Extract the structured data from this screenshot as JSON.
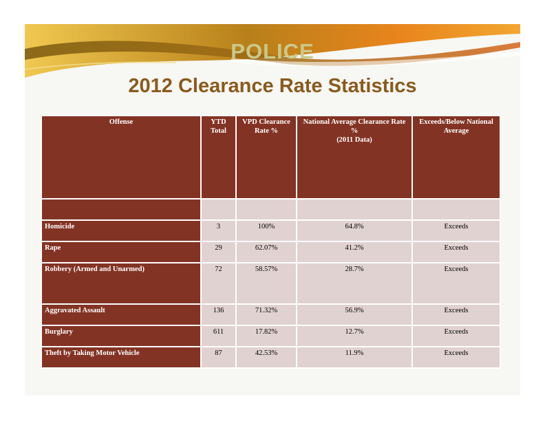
{
  "header": {
    "department": "POLICE",
    "title": "2012 Clearance Rate Statistics"
  },
  "table": {
    "columns": [
      "Offense",
      "YTD Total",
      "VPD Clearance Rate %",
      "National Average Clearance Rate %\n(2011 Data)",
      "Exceeds/Below National Average"
    ],
    "rows": [
      {
        "offense": "Homicide",
        "ytd": "3",
        "vpd": "100%",
        "national": "64.8%",
        "status": "Exceeds"
      },
      {
        "offense": "Rape",
        "ytd": "29",
        "vpd": "62.07%",
        "national": "41.2%",
        "status": "Exceeds"
      },
      {
        "offense": "Robbery (Armed and Unarmed)",
        "ytd": "72",
        "vpd": "58.57%",
        "national": "28.7%",
        "status": "Exceeds"
      },
      {
        "offense": "Aggravated Assault",
        "ytd": "136",
        "vpd": "71.32%",
        "national": "56.9%",
        "status": "Exceeds"
      },
      {
        "offense": "Burglary",
        "ytd": "611",
        "vpd": "17.82%",
        "national": "12.7%",
        "status": "Exceeds"
      },
      {
        "offense": "Theft by Taking Motor Vehicle",
        "ytd": "87",
        "vpd": "42.53%",
        "national": "11.9%",
        "status": "Exceeds"
      }
    ]
  },
  "colors": {
    "header_bg": "#833324",
    "cell_bg": "#e0d2d0",
    "title": "#8a5a1c",
    "swoosh_gold": "#d9a020",
    "swoosh_orange": "#e8741a"
  }
}
